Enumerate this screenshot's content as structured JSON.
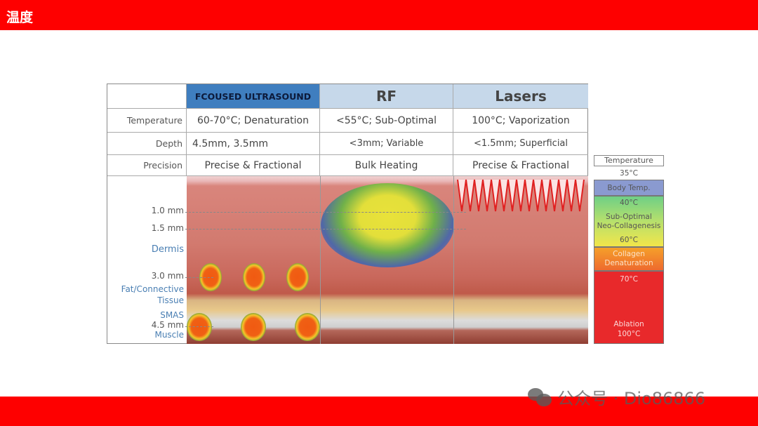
{
  "slide": {
    "title": "温度",
    "watermark": "公众号 · Dio86866"
  },
  "table": {
    "columns": [
      "FCOUSED ULTRASOUND",
      "RF",
      "Lasers"
    ],
    "rows": [
      {
        "label": "Temperature",
        "values": [
          "60-70°C; Denaturation",
          "<55°C; Sub-Optimal",
          "100°C; Vaporization"
        ]
      },
      {
        "label": "Depth",
        "values": [
          "4.5mm, 3.5mm",
          "<3mm; Variable",
          "<1.5mm; Superficial"
        ]
      },
      {
        "label": "Precision",
        "values": [
          "Precise & Fractional",
          "Bulk Heating",
          "Precise & Fractional"
        ]
      }
    ]
  },
  "depth_labels": {
    "d1": "1.0 mm",
    "d15": "1.5 mm",
    "dermis": "Dermis",
    "d3": "3.0 mm",
    "fat": "Fat/Connective",
    "tissue": "Tissue",
    "smas": "SMAS",
    "d45": "4.5 mm",
    "muscle": "Muscle"
  },
  "legend": {
    "title": "Temperature",
    "t35": "35°C",
    "body": "Body Temp.",
    "t40": "40°C",
    "sub1": "Sub-Optimal",
    "sub2": "Neo-Collagenesis",
    "t60": "60°C",
    "col1": "Collagen",
    "col2": "Denaturation",
    "t70": "70°C",
    "abl": "Ablation",
    "t100": "100°C",
    "colors": {
      "body": "#8a9ad0",
      "sub": "#7fcf7a",
      "sub_low": "#f2e64a",
      "denat": "#f08a2e",
      "ablation": "#e82a2a"
    }
  }
}
